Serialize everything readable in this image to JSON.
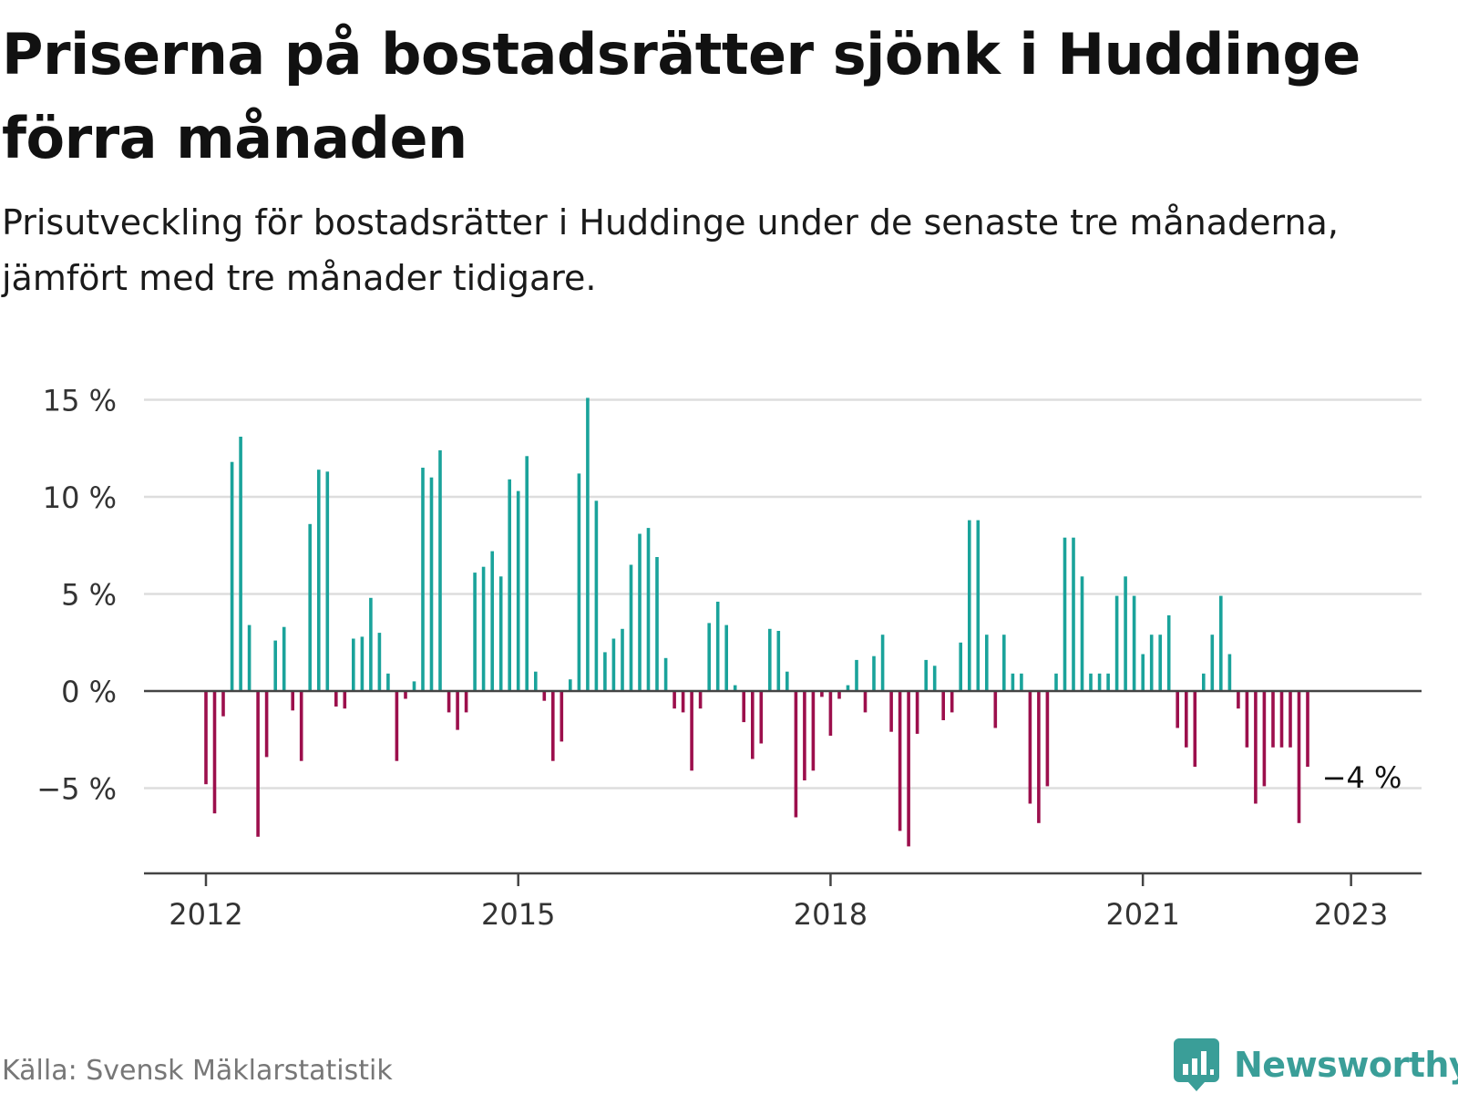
{
  "title": "Priserna på bostadsrätter sjönk i Huddinge förra månaden",
  "subtitle": "Prisutveckling för bostadsrätter i Huddinge under de senaste tre månaderna, jämfört med tre månader tidigare.",
  "source": "Källa: Svensk Mäklarstatistik",
  "brand": "Newsworthy",
  "colors": {
    "positive": "#1aa39b",
    "negative": "#9c0f4c",
    "grid": "#dddddd",
    "axis": "#444444",
    "brand": "#3a9e98"
  },
  "chart_data": {
    "type": "bar",
    "title": "",
    "xlabel": "",
    "ylabel": "",
    "ylim": [
      -9.5,
      15
    ],
    "y_ticks": [
      {
        "value": 15,
        "label": "15 %"
      },
      {
        "value": 10,
        "label": "10 %"
      },
      {
        "value": 5,
        "label": "5 %"
      },
      {
        "value": 0,
        "label": "0 %"
      },
      {
        "value": -5,
        "label": "−5 %"
      }
    ],
    "x_ticks": [
      {
        "date": "2012-01",
        "label": "2012"
      },
      {
        "date": "2015-01",
        "label": "2015"
      },
      {
        "date": "2018-01",
        "label": "2018"
      },
      {
        "date": "2021-01",
        "label": "2021"
      },
      {
        "date": "2023-01",
        "label": "2023"
      }
    ],
    "annotation": {
      "date": "2023-01",
      "label": "−4 %"
    },
    "grid": true,
    "series": [
      {
        "start": "2012-01",
        "values": [
          -4.8,
          -6.3,
          -1.3,
          11.8,
          13.1,
          3.4,
          -7.5,
          -3.4,
          2.6,
          3.3,
          -1.0,
          -3.6,
          8.6,
          11.4,
          11.3,
          -0.8,
          -0.9,
          2.7,
          2.8,
          4.8,
          3.0,
          0.9,
          -3.6,
          -0.4,
          0.5,
          11.5,
          11.0,
          12.4,
          -1.1,
          -2.0,
          -1.1,
          6.1,
          6.4,
          7.2,
          5.9,
          10.9,
          10.3,
          12.1,
          1.0,
          -0.5,
          -3.6,
          -2.6,
          0.6,
          11.2,
          15.1,
          9.8,
          2.0,
          2.7,
          3.2,
          6.5,
          8.1,
          8.4,
          6.9,
          1.7,
          -0.9,
          -1.1,
          -4.1,
          -0.9,
          3.5,
          4.6,
          3.4,
          0.3,
          -1.6,
          -3.5,
          -2.7,
          3.2,
          3.1,
          1.0,
          -6.5,
          -4.6,
          -4.1,
          -0.3,
          -2.3,
          -0.4,
          0.3,
          1.6,
          -1.1,
          1.8,
          2.9,
          -2.1,
          -7.2,
          -8.0,
          -2.2,
          1.6,
          1.3,
          -1.5,
          -1.1,
          2.5,
          8.8,
          8.8,
          2.9,
          -1.9,
          2.9,
          0.9,
          0.9,
          -5.8,
          -6.8,
          -4.9,
          0.9,
          7.9,
          7.9,
          5.9,
          0.9,
          0.9,
          0.9,
          4.9,
          5.9,
          4.9,
          1.9,
          2.9,
          2.9,
          3.9,
          -1.9,
          -2.9,
          -3.9,
          0.9,
          2.9,
          4.9,
          1.9,
          -0.9,
          -2.9,
          -5.8,
          -4.9,
          -2.9,
          -2.9,
          -2.9,
          -6.8,
          -3.9
        ]
      }
    ]
  }
}
